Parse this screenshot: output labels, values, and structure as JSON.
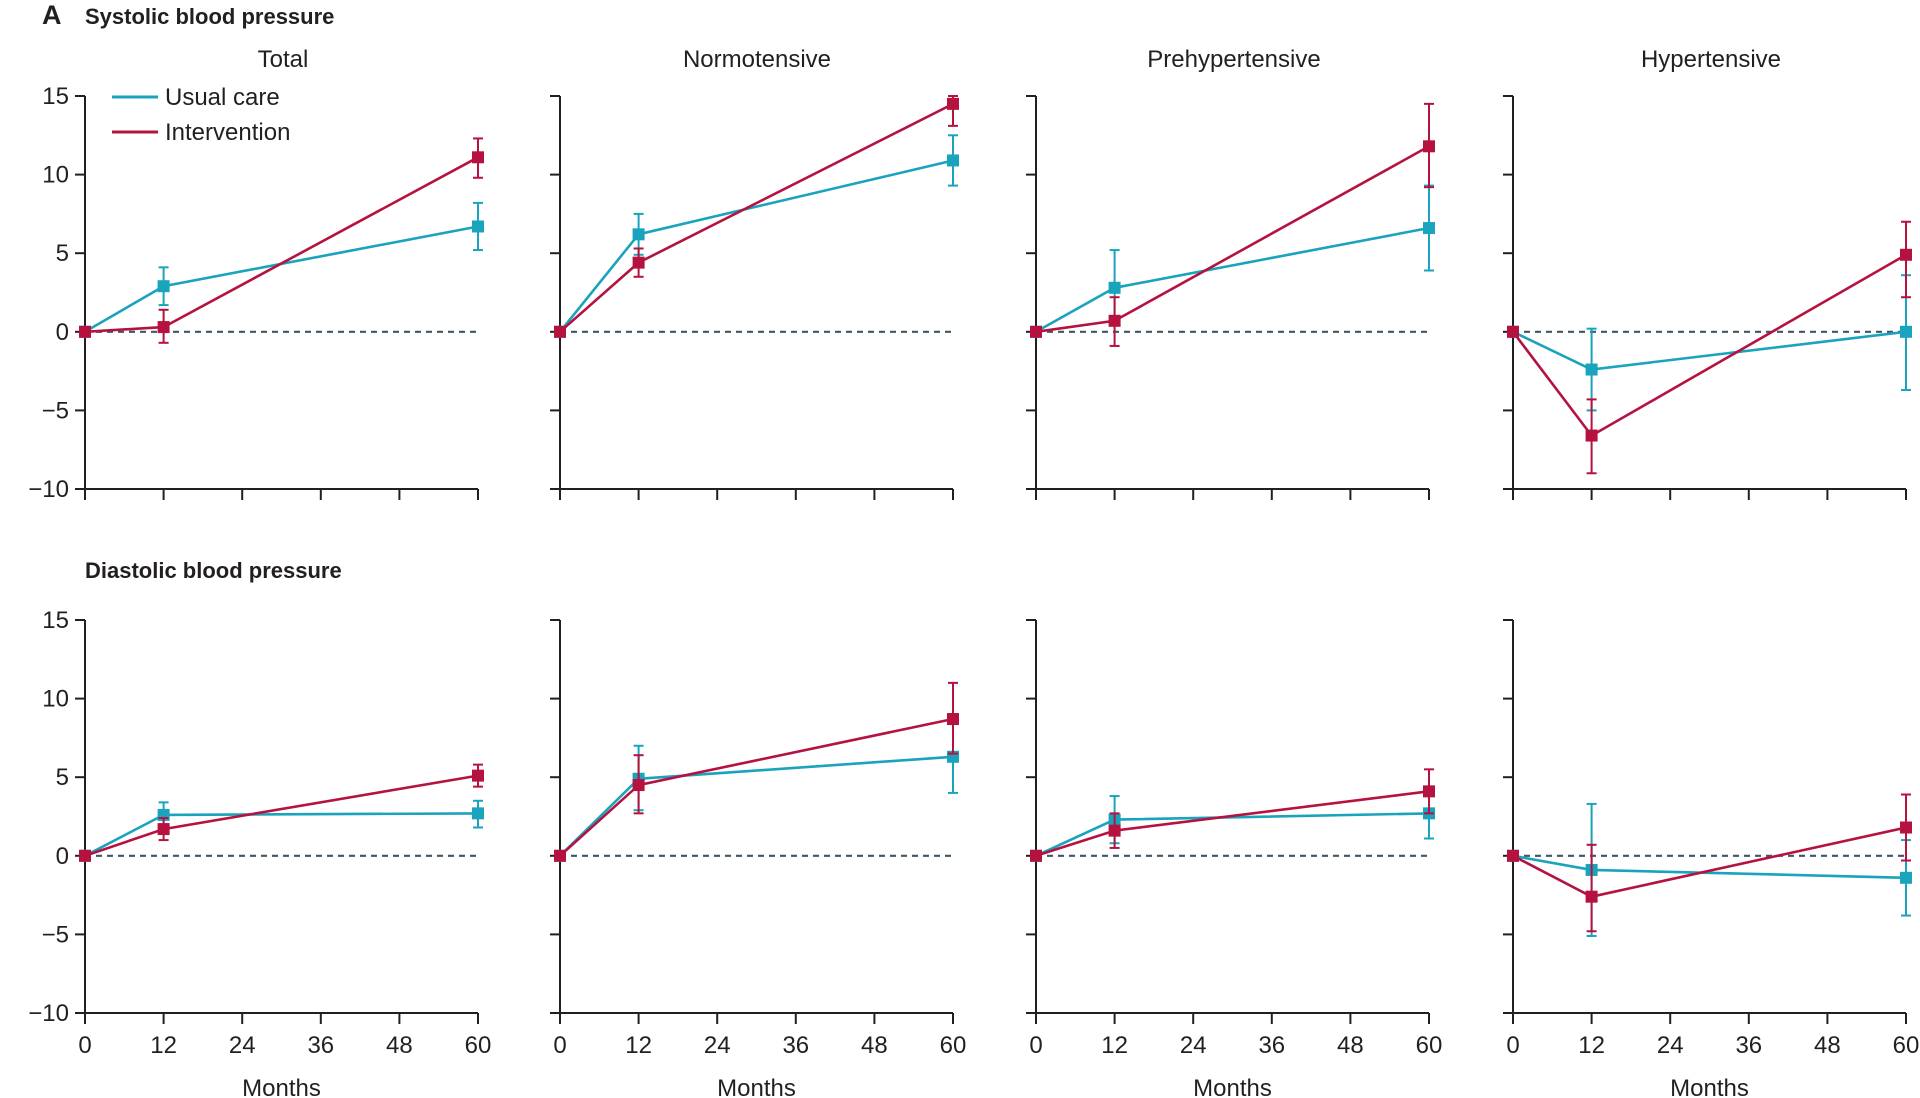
{
  "figure": {
    "panel_letter": "A",
    "row_titles": [
      "Systolic blood pressure",
      "Diastolic blood pressure"
    ],
    "column_titles": [
      "Total",
      "Normotensive",
      "Prehypertensive",
      "Hypertensive"
    ],
    "xlabel": "Months",
    "legend": [
      {
        "name": "Usual care",
        "color": "#1aa3bd"
      },
      {
        "name": "Intervention",
        "color": "#b5123f"
      }
    ]
  },
  "chart_data": [
    {
      "type": "line",
      "row": "Systolic blood pressure",
      "title": "Total",
      "xlabel": "Months",
      "ylabel": "",
      "x": [
        0,
        12,
        60
      ],
      "xticks": [
        0,
        12,
        24,
        36,
        48,
        60
      ],
      "xlim": [
        0,
        60
      ],
      "yticks": [
        -10,
        -5,
        0,
        5,
        10,
        15
      ],
      "ylim": [
        -10,
        15
      ],
      "series": [
        {
          "name": "Usual care",
          "values": [
            0,
            2.9,
            6.7
          ],
          "lower": [
            0,
            1.7,
            5.2
          ],
          "upper": [
            0,
            4.1,
            8.2
          ]
        },
        {
          "name": "Intervention",
          "values": [
            0,
            0.3,
            11.1
          ],
          "lower": [
            0,
            -0.7,
            9.8
          ],
          "upper": [
            0,
            1.4,
            12.3
          ]
        }
      ]
    },
    {
      "type": "line",
      "row": "Systolic blood pressure",
      "title": "Normotensive",
      "xlabel": "Months",
      "ylabel": "",
      "x": [
        0,
        12,
        60
      ],
      "xticks": [
        0,
        12,
        24,
        36,
        48,
        60
      ],
      "xlim": [
        0,
        60
      ],
      "yticks": [
        -10,
        -5,
        0,
        5,
        10,
        15
      ],
      "ylim": [
        -10,
        15
      ],
      "series": [
        {
          "name": "Usual care",
          "values": [
            0,
            6.2,
            10.9
          ],
          "lower": [
            0,
            4.9,
            9.3
          ],
          "upper": [
            0,
            7.5,
            12.5
          ]
        },
        {
          "name": "Intervention",
          "values": [
            0,
            4.4,
            14.5
          ],
          "lower": [
            0,
            3.5,
            13.1
          ],
          "upper": [
            0,
            5.3,
            15.0
          ]
        }
      ]
    },
    {
      "type": "line",
      "row": "Systolic blood pressure",
      "title": "Prehypertensive",
      "xlabel": "Months",
      "ylabel": "",
      "x": [
        0,
        12,
        60
      ],
      "xticks": [
        0,
        12,
        24,
        36,
        48,
        60
      ],
      "xlim": [
        0,
        60
      ],
      "yticks": [
        -10,
        -5,
        0,
        5,
        10,
        15
      ],
      "ylim": [
        -10,
        15
      ],
      "series": [
        {
          "name": "Usual care",
          "values": [
            0,
            2.8,
            6.6
          ],
          "lower": [
            0,
            0.4,
            3.9
          ],
          "upper": [
            0,
            5.2,
            9.3
          ]
        },
        {
          "name": "Intervention",
          "values": [
            0,
            0.7,
            11.8
          ],
          "lower": [
            0,
            -0.9,
            9.2
          ],
          "upper": [
            0,
            2.2,
            14.5
          ]
        }
      ]
    },
    {
      "type": "line",
      "row": "Systolic blood pressure",
      "title": "Hypertensive",
      "xlabel": "Months",
      "ylabel": "",
      "x": [
        0,
        12,
        60
      ],
      "xticks": [
        0,
        12,
        24,
        36,
        48,
        60
      ],
      "xlim": [
        0,
        60
      ],
      "yticks": [
        -10,
        -5,
        0,
        5,
        10,
        15
      ],
      "ylim": [
        -10,
        15
      ],
      "series": [
        {
          "name": "Usual care",
          "values": [
            0,
            -2.4,
            0.0
          ],
          "lower": [
            0,
            -5.0,
            -3.7
          ],
          "upper": [
            0,
            0.2,
            3.6
          ]
        },
        {
          "name": "Intervention",
          "values": [
            0,
            -6.6,
            4.9
          ],
          "lower": [
            0,
            -9.0,
            2.2
          ],
          "upper": [
            0,
            -4.3,
            7.0
          ]
        }
      ]
    },
    {
      "type": "line",
      "row": "Diastolic blood pressure",
      "title": "Total",
      "xlabel": "Months",
      "ylabel": "",
      "x": [
        0,
        12,
        60
      ],
      "xticks": [
        0,
        12,
        24,
        36,
        48,
        60
      ],
      "xlim": [
        0,
        60
      ],
      "yticks": [
        -10,
        -5,
        0,
        5,
        10,
        15
      ],
      "ylim": [
        -10,
        15
      ],
      "series": [
        {
          "name": "Usual care",
          "values": [
            0,
            2.6,
            2.7
          ],
          "lower": [
            0,
            1.8,
            1.8
          ],
          "upper": [
            0,
            3.4,
            3.5
          ]
        },
        {
          "name": "Intervention",
          "values": [
            0,
            1.7,
            5.1
          ],
          "lower": [
            0,
            1.0,
            4.4
          ],
          "upper": [
            0,
            2.4,
            5.8
          ]
        }
      ]
    },
    {
      "type": "line",
      "row": "Diastolic blood pressure",
      "title": "Normotensive",
      "xlabel": "Months",
      "ylabel": "",
      "x": [
        0,
        12,
        60
      ],
      "xticks": [
        0,
        12,
        24,
        36,
        48,
        60
      ],
      "xlim": [
        0,
        60
      ],
      "yticks": [
        -10,
        -5,
        0,
        5,
        10,
        15
      ],
      "ylim": [
        -10,
        15
      ],
      "series": [
        {
          "name": "Usual care",
          "values": [
            0,
            4.9,
            6.3
          ],
          "lower": [
            0,
            2.9,
            4.0
          ],
          "upper": [
            0,
            7.0,
            8.6
          ]
        },
        {
          "name": "Intervention",
          "values": [
            0,
            4.5,
            8.7
          ],
          "lower": [
            0,
            2.7,
            6.5
          ],
          "upper": [
            0,
            6.4,
            11.0
          ]
        }
      ]
    },
    {
      "type": "line",
      "row": "Diastolic blood pressure",
      "title": "Prehypertensive",
      "xlabel": "Months",
      "ylabel": "",
      "x": [
        0,
        12,
        60
      ],
      "xticks": [
        0,
        12,
        24,
        36,
        48,
        60
      ],
      "xlim": [
        0,
        60
      ],
      "yticks": [
        -10,
        -5,
        0,
        5,
        10,
        15
      ],
      "ylim": [
        -10,
        15
      ],
      "series": [
        {
          "name": "Usual care",
          "values": [
            0,
            2.3,
            2.7
          ],
          "lower": [
            0,
            0.8,
            1.1
          ],
          "upper": [
            0,
            3.8,
            4.2
          ]
        },
        {
          "name": "Intervention",
          "values": [
            0,
            1.6,
            4.1
          ],
          "lower": [
            0,
            0.5,
            2.7
          ],
          "upper": [
            0,
            2.7,
            5.5
          ]
        }
      ]
    },
    {
      "type": "line",
      "row": "Diastolic blood pressure",
      "title": "Hypertensive",
      "xlabel": "Months",
      "ylabel": "",
      "x": [
        0,
        12,
        60
      ],
      "xticks": [
        0,
        12,
        24,
        36,
        48,
        60
      ],
      "xlim": [
        0,
        60
      ],
      "yticks": [
        -10,
        -5,
        0,
        5,
        10,
        15
      ],
      "ylim": [
        -10,
        15
      ],
      "series": [
        {
          "name": "Usual care",
          "values": [
            0,
            -0.9,
            -1.4
          ],
          "lower": [
            0,
            -5.1,
            -3.8
          ],
          "upper": [
            0,
            3.3,
            1.0
          ]
        },
        {
          "name": "Intervention",
          "values": [
            0,
            -2.6,
            1.8
          ],
          "lower": [
            0,
            -4.8,
            -0.3
          ],
          "upper": [
            0,
            0.7,
            3.9
          ]
        }
      ]
    }
  ]
}
